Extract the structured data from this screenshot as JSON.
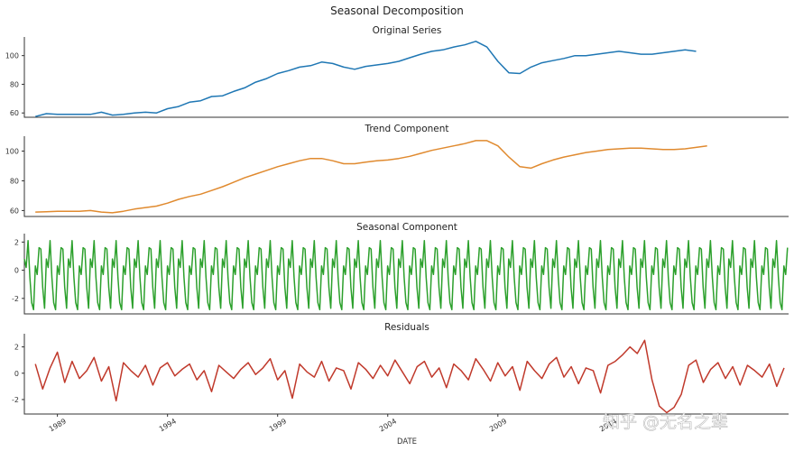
{
  "figure": {
    "title": "Seasonal Decomposition",
    "xlabel": "DATE",
    "watermark": "知乎 @无名之辈"
  },
  "chart_data": [
    {
      "type": "line",
      "title": "Original Series",
      "color": "#1f77b4",
      "ylim": [
        57,
        113
      ],
      "yticks": [
        60,
        80,
        100
      ],
      "xlim": [
        1987.5,
        2022.2
      ],
      "x_start": 1988.0,
      "step": 0.5,
      "values": [
        57.5,
        59.5,
        59.0,
        59.0,
        59.0,
        59.0,
        60.5,
        58.5,
        59.0,
        60.0,
        60.5,
        60.0,
        63.0,
        64.5,
        67.5,
        68.5,
        71.5,
        72.0,
        75.0,
        77.5,
        81.5,
        84.0,
        87.5,
        89.5,
        92.0,
        93.0,
        95.5,
        94.5,
        92.0,
        90.5,
        92.5,
        93.5,
        94.5,
        96.0,
        98.5,
        101.0,
        103.0,
        104.0,
        106.0,
        107.5,
        110.0,
        106.0,
        96.0,
        88.0,
        87.5,
        92.0,
        95.0,
        96.5,
        98.0,
        100.0,
        100.0,
        101.0,
        102.0,
        103.0,
        102.0,
        101.0,
        101.0,
        102.0,
        103.0,
        104.0,
        103.0
      ]
    },
    {
      "type": "line",
      "title": "Trend Component",
      "color": "#e08a2f",
      "ylim": [
        56,
        110
      ],
      "yticks": [
        60,
        80,
        100
      ],
      "xlim": [
        1987.5,
        2022.2
      ],
      "x_start": 1988.0,
      "step": 0.5,
      "values": [
        59.0,
        59.2,
        59.5,
        59.5,
        59.5,
        60.0,
        59.0,
        58.5,
        59.5,
        61.0,
        62.0,
        63.0,
        65.0,
        67.5,
        69.5,
        71.0,
        73.5,
        76.0,
        79.0,
        82.0,
        84.5,
        87.0,
        89.5,
        91.5,
        93.5,
        95.0,
        95.0,
        93.5,
        91.5,
        91.5,
        92.5,
        93.5,
        94.0,
        95.0,
        96.5,
        98.5,
        100.5,
        102.0,
        103.5,
        105.0,
        107.0,
        107.0,
        103.5,
        96.0,
        89.5,
        88.5,
        91.5,
        94.0,
        96.0,
        97.5,
        99.0,
        100.0,
        101.0,
        101.5,
        102.0,
        102.0,
        101.5,
        101.0,
        101.0,
        101.5,
        102.5,
        103.5
      ]
    },
    {
      "type": "line",
      "title": "Seasonal Component",
      "color": "#2ca02c",
      "ylim": [
        -3.1,
        2.6
      ],
      "yticks": [
        -2,
        0,
        2
      ],
      "xlim": [
        1987.5,
        2022.2
      ],
      "x_start": 1987.5,
      "step": 0.0833,
      "pattern": [
        0.8,
        0.2,
        2.1,
        -0.5,
        -2.3,
        -2.8,
        0.3,
        -0.3,
        1.6,
        1.5,
        -1.2,
        -2.7
      ],
      "cycles": 35
    },
    {
      "type": "line",
      "title": "Residuals",
      "color": "#c0392b",
      "ylim": [
        -3.1,
        3.0
      ],
      "yticks": [
        -2,
        0,
        2
      ],
      "xlim": [
        1987.5,
        2022.2
      ],
      "x_start": 1988.0,
      "step": 0.3333,
      "values": [
        0.7,
        -1.2,
        0.4,
        1.6,
        -0.7,
        0.9,
        -0.4,
        0.2,
        1.2,
        -0.6,
        0.5,
        -2.1,
        0.8,
        0.2,
        -0.3,
        0.6,
        -0.9,
        0.4,
        0.8,
        -0.2,
        0.3,
        0.7,
        -0.5,
        0.2,
        -1.4,
        0.6,
        0.1,
        -0.4,
        0.3,
        0.8,
        -0.1,
        0.4,
        1.1,
        -0.5,
        0.2,
        -1.9,
        0.7,
        0.1,
        -0.3,
        0.9,
        -0.6,
        0.4,
        0.2,
        -1.2,
        0.8,
        0.3,
        -0.4,
        0.6,
        -0.2,
        1.0,
        0.1,
        -0.8,
        0.5,
        0.9,
        -0.3,
        0.4,
        -1.1,
        0.7,
        0.2,
        -0.5,
        1.1,
        0.3,
        -0.6,
        0.8,
        -0.2,
        0.5,
        -1.3,
        0.9,
        0.2,
        -0.4,
        0.7,
        1.2,
        -0.3,
        0.5,
        -0.8,
        0.4,
        0.2,
        -1.5,
        0.6,
        0.9,
        1.4,
        2.0,
        1.5,
        2.5,
        -0.5,
        -2.5,
        -3.0,
        -2.6,
        -1.6,
        0.6,
        1.0,
        -0.7,
        0.3,
        0.8,
        -0.4,
        0.5,
        -0.9,
        0.6,
        0.2,
        -0.3,
        0.7,
        -1.0,
        0.4,
        0.1,
        -0.5,
        0.9,
        0.3,
        -0.6,
        0.4
      ]
    }
  ],
  "x_axis": {
    "ticks": [
      {
        "label": "1989",
        "value": 1989
      },
      {
        "label": "1994",
        "value": 1994
      },
      {
        "label": "1999",
        "value": 1999
      },
      {
        "label": "2004",
        "value": 2004
      },
      {
        "label": "2009",
        "value": 2009
      },
      {
        "label": "2014",
        "value": 2014
      }
    ]
  }
}
